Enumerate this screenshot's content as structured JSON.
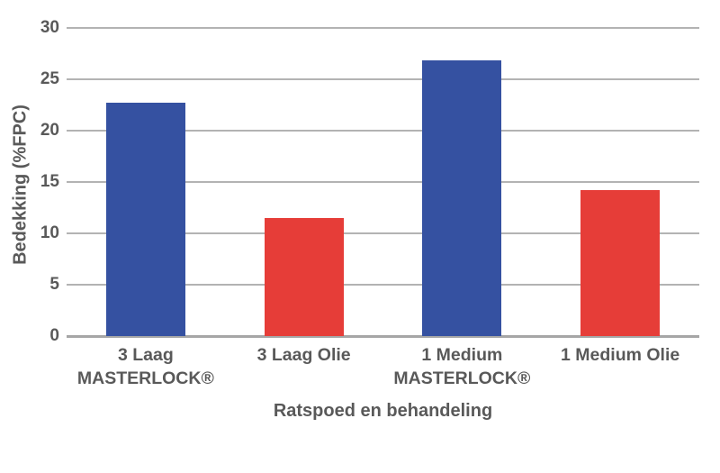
{
  "chart_data": {
    "type": "bar",
    "title": "",
    "xlabel": "Ratspoed en behandeling",
    "ylabel": "Bedekking (%FPC)",
    "categories": [
      "3 Laag MASTERLOCK®",
      "3 Laag Olie",
      "1 Medium MASTERLOCK®",
      "1 Medium Olie"
    ],
    "category_lines": [
      [
        "3 Laag",
        "MASTERLOCK®"
      ],
      [
        "3 Laag Olie"
      ],
      [
        "1 Medium",
        "MASTERLOCK®"
      ],
      [
        "1 Medium Olie"
      ]
    ],
    "values": [
      22.7,
      11.5,
      26.8,
      14.2
    ],
    "bar_colors": [
      "#3551a1",
      "#e63d38",
      "#3551a1",
      "#e63d38"
    ],
    "yticks": [
      0,
      5,
      10,
      15,
      20,
      25,
      30
    ],
    "ylim": [
      0,
      30
    ],
    "grid": "horizontal",
    "legend": "none"
  },
  "colors": {
    "blue": "#3551a1",
    "red": "#e63d38",
    "gridline": "#b3b3b3",
    "axis_line": "#a6a6a6",
    "text": "#595959",
    "background": "#ffffff"
  }
}
